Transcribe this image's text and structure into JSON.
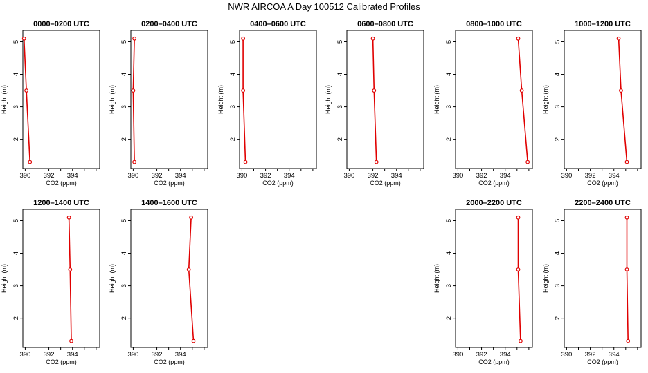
{
  "title": "NWR AIRCOA A  Day 100512  Calibrated Profiles",
  "chart_data": [
    {
      "type": "line",
      "title": "0000–0200 UTC",
      "xlabel": "CO2 (ppm)",
      "ylabel": "Height (m)",
      "xlim": [
        389.8,
        396.3
      ],
      "ylim": [
        1.1,
        5.35
      ],
      "xticks": [
        390,
        392,
        394
      ],
      "yticks": [
        2,
        3,
        4,
        5
      ],
      "series": [
        {
          "x": [
            390.4,
            390.1,
            389.9
          ],
          "y": [
            1.3,
            3.5,
            5.1
          ]
        }
      ]
    },
    {
      "type": "line",
      "title": "0200–0400 UTC",
      "xlabel": "CO2 (ppm)",
      "ylabel": "Height (m)",
      "xlim": [
        389.8,
        396.3
      ],
      "ylim": [
        1.1,
        5.35
      ],
      "xticks": [
        390,
        392,
        394
      ],
      "yticks": [
        2,
        3,
        4,
        5
      ],
      "series": [
        {
          "x": [
            390.1,
            390.0,
            390.1
          ],
          "y": [
            1.3,
            3.5,
            5.1
          ]
        }
      ]
    },
    {
      "type": "line",
      "title": "0400–0600 UTC",
      "xlabel": "CO2 (ppm)",
      "ylabel": "Height (m)",
      "xlim": [
        389.8,
        396.3
      ],
      "ylim": [
        1.1,
        5.35
      ],
      "xticks": [
        390,
        392,
        394
      ],
      "yticks": [
        2,
        3,
        4,
        5
      ],
      "series": [
        {
          "x": [
            390.3,
            390.1,
            390.1
          ],
          "y": [
            1.3,
            3.5,
            5.1
          ]
        }
      ]
    },
    {
      "type": "line",
      "title": "0600–0800 UTC",
      "xlabel": "CO2 (ppm)",
      "ylabel": "Height (m)",
      "xlim": [
        389.8,
        396.3
      ],
      "ylim": [
        1.1,
        5.35
      ],
      "xticks": [
        390,
        392,
        394
      ],
      "yticks": [
        2,
        3,
        4,
        5
      ],
      "series": [
        {
          "x": [
            392.3,
            392.1,
            392.0
          ],
          "y": [
            1.3,
            3.5,
            5.1
          ]
        }
      ]
    },
    {
      "type": "line",
      "title": "0800–1000 UTC",
      "xlabel": "CO2 (ppm)",
      "ylabel": "Height (m)",
      "xlim": [
        389.8,
        396.3
      ],
      "ylim": [
        1.1,
        5.35
      ],
      "xticks": [
        390,
        392,
        394
      ],
      "yticks": [
        2,
        3,
        4,
        5
      ],
      "series": [
        {
          "x": [
            395.9,
            395.4,
            395.1
          ],
          "y": [
            1.3,
            3.5,
            5.1
          ]
        }
      ]
    },
    {
      "type": "line",
      "title": "1000–1200 UTC",
      "xlabel": "CO2 (ppm)",
      "ylabel": "Height (m)",
      "xlim": [
        389.8,
        396.3
      ],
      "ylim": [
        1.1,
        5.35
      ],
      "xticks": [
        390,
        392,
        394
      ],
      "yticks": [
        2,
        3,
        4,
        5
      ],
      "series": [
        {
          "x": [
            395.1,
            394.6,
            394.4
          ],
          "y": [
            1.3,
            3.5,
            5.1
          ]
        }
      ]
    },
    {
      "type": "line",
      "title": "1200–1400 UTC",
      "xlabel": "CO2 (ppm)",
      "ylabel": "Height (m)",
      "xlim": [
        389.8,
        396.3
      ],
      "ylim": [
        1.1,
        5.35
      ],
      "xticks": [
        390,
        392,
        394
      ],
      "yticks": [
        2,
        3,
        4,
        5
      ],
      "series": [
        {
          "x": [
            393.9,
            393.8,
            393.7
          ],
          "y": [
            1.3,
            3.5,
            5.1
          ]
        }
      ]
    },
    {
      "type": "line",
      "title": "1400–1600 UTC",
      "xlabel": "CO2 (ppm)",
      "ylabel": "Height (m)",
      "xlim": [
        389.8,
        396.3
      ],
      "ylim": [
        1.1,
        5.35
      ],
      "xticks": [
        390,
        392,
        394
      ],
      "yticks": [
        2,
        3,
        4,
        5
      ],
      "series": [
        {
          "x": [
            395.1,
            394.7,
            394.9
          ],
          "y": [
            1.3,
            3.5,
            5.1
          ]
        }
      ]
    },
    {
      "type": "line",
      "title": "2000–2200 UTC",
      "xlabel": "CO2 (ppm)",
      "ylabel": "Height (m)",
      "xlim": [
        389.8,
        396.3
      ],
      "ylim": [
        1.1,
        5.35
      ],
      "xticks": [
        390,
        392,
        394
      ],
      "yticks": [
        2,
        3,
        4,
        5
      ],
      "series": [
        {
          "x": [
            395.3,
            395.1,
            395.1
          ],
          "y": [
            1.3,
            3.5,
            5.1
          ]
        }
      ]
    },
    {
      "type": "line",
      "title": "2200–2400 UTC",
      "xlabel": "CO2 (ppm)",
      "ylabel": "Height (m)",
      "xlim": [
        389.8,
        396.3
      ],
      "ylim": [
        1.1,
        5.35
      ],
      "xticks": [
        390,
        392,
        394
      ],
      "yticks": [
        2,
        3,
        4,
        5
      ],
      "series": [
        {
          "x": [
            395.2,
            395.1,
            395.1
          ],
          "y": [
            1.3,
            3.5,
            5.1
          ]
        }
      ]
    }
  ]
}
